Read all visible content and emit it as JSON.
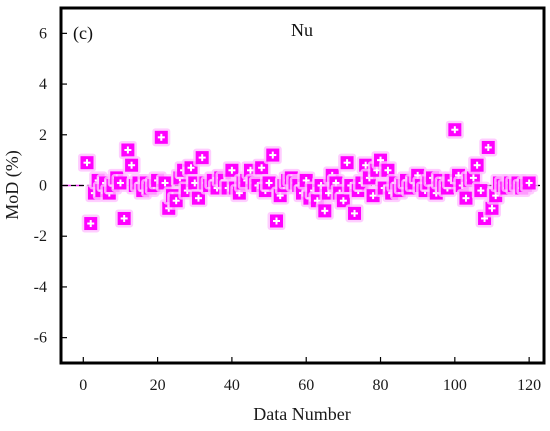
{
  "chart_data": {
    "type": "scatter",
    "panel_label": "(c)",
    "title": "Nu",
    "xlabel": "Data Number",
    "ylabel": "MoD (%)",
    "xlim": [
      -6,
      124
    ],
    "ylim": [
      -7,
      7
    ],
    "xticks": [
      0,
      20,
      40,
      60,
      80,
      100,
      120
    ],
    "yticks": [
      -6,
      -4,
      -2,
      0,
      2,
      4,
      6
    ],
    "grid": false,
    "reference_line": {
      "y": 0,
      "style": "dashed",
      "color": "#000000"
    },
    "reference_line2": {
      "y": 0,
      "style": "solid",
      "color": "#ff00ff"
    },
    "colors": {
      "marker_fill": "#ff00ff",
      "marker_halo": "#ffc0ff",
      "marker_glyph": "#ffffff",
      "frame": "#000000"
    },
    "marker_icon": "plus-square-icon",
    "series": [
      {
        "x": [
          1,
          2,
          3,
          4,
          5,
          6,
          7,
          8,
          9,
          10,
          11,
          12,
          13,
          14,
          15,
          16,
          17,
          18,
          19,
          20,
          21,
          22,
          23,
          24,
          25,
          26,
          27,
          28,
          29,
          30,
          31,
          32,
          33,
          34,
          35,
          36,
          37,
          38,
          39,
          40,
          41,
          42,
          43,
          44,
          45,
          46,
          47,
          48,
          49,
          50,
          51,
          52,
          53,
          54,
          55,
          56,
          57,
          58,
          59,
          60,
          61,
          62,
          63,
          64,
          65,
          66,
          67,
          68,
          69,
          70,
          71,
          72,
          73,
          74,
          75,
          76,
          77,
          78,
          79,
          80,
          81,
          82,
          83,
          84,
          85,
          86,
          87,
          88,
          89,
          90,
          91,
          92,
          93,
          94,
          95,
          96,
          97,
          98,
          99,
          100,
          101,
          102,
          103,
          104,
          105,
          106,
          107,
          108,
          109,
          110,
          111,
          112,
          113,
          114,
          115,
          116,
          117,
          118,
          119,
          120
        ],
        "values": [
          0.9,
          -1.5,
          -0.3,
          0.2,
          -0.2,
          0.1,
          -0.3,
          0.0,
          0.3,
          0.1,
          -1.3,
          1.4,
          0.8,
          0.0,
          0.1,
          -0.2,
          0.1,
          -0.1,
          0.0,
          0.2,
          1.9,
          0.1,
          -0.9,
          -0.4,
          -0.6,
          0.3,
          0.6,
          -0.2,
          0.7,
          0.1,
          -0.5,
          1.1,
          0.1,
          0.0,
          0.2,
          -0.1,
          0.3,
          0.2,
          -0.1,
          0.6,
          -0.1,
          -0.3,
          0.1,
          0.2,
          0.6,
          0.1,
          0.0,
          0.7,
          -0.2,
          0.1,
          1.2,
          -1.4,
          -0.4,
          0.0,
          0.2,
          0.3,
          0.1,
          0.0,
          -0.3,
          0.2,
          -0.5,
          -0.2,
          -0.6,
          0.0,
          -1.0,
          -0.3,
          0.4,
          0.1,
          -0.3,
          -0.6,
          0.9,
          0.0,
          -1.1,
          -0.2,
          0.1,
          0.8,
          0.3,
          -0.4,
          0.6,
          1.0,
          -0.1,
          0.6,
          -0.3,
          0.1,
          -0.2,
          0.0,
          0.2,
          -0.1,
          0.1,
          0.4,
          0.0,
          -0.2,
          0.1,
          0.3,
          -0.3,
          0.2,
          0.0,
          -0.1,
          0.2,
          2.2,
          0.4,
          0.0,
          -0.5,
          0.2,
          0.3,
          0.8,
          -0.2,
          -1.3,
          1.5,
          -0.9,
          -0.4,
          0.1,
          0.0,
          -0.1,
          0.1,
          0.0,
          0.1,
          -0.1,
          0.0,
          0.1
        ]
      }
    ]
  }
}
